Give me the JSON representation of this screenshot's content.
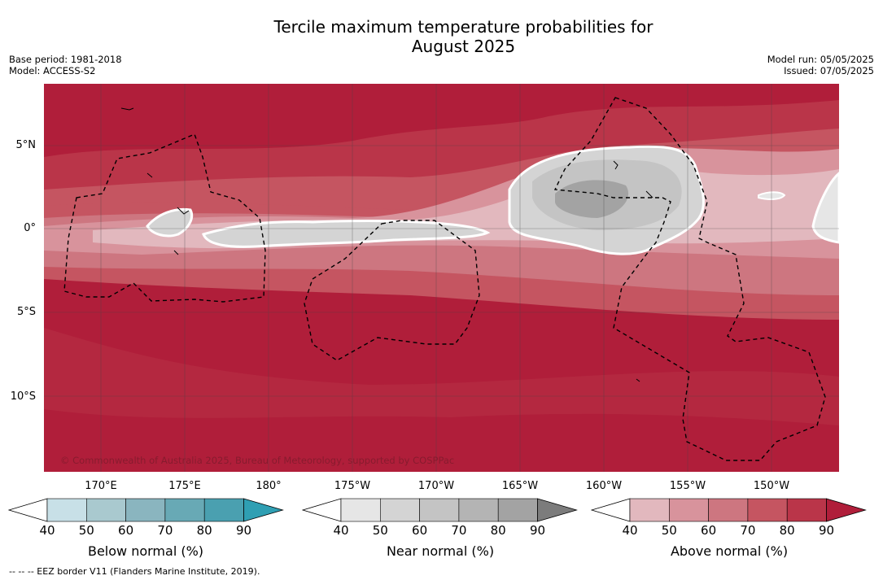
{
  "title_line1": "Tercile maximum temperature probabilities for",
  "title_line2": "August 2025",
  "base_period": "Base period: 1981-2018",
  "model": "Model: ACCESS-S2",
  "model_run": "Model run: 05/05/2025",
  "issued": "Issued: 07/05/2025",
  "lat_labels": [
    "5°N",
    "0°",
    "5°S",
    "10°S"
  ],
  "lon_labels": [
    "170°E",
    "175°E",
    "180°",
    "175°W",
    "170°W",
    "165°W",
    "160°W",
    "155°W",
    "150°W"
  ],
  "copyright": "© Commonwealth of Australia 2025, Bureau of Meteorology, supported by COSPPac",
  "colorbars": {
    "below": {
      "title": "Below normal (%)",
      "ticks": [
        "40",
        "50",
        "60",
        "70",
        "80",
        "90"
      ],
      "colors": [
        "#ffffff",
        "#c8e0e7",
        "#a9c9cf",
        "#8ab5bf",
        "#68a9b5",
        "#4aa0b0",
        "#2f9fb3"
      ]
    },
    "near": {
      "title": "Near normal (%)",
      "ticks": [
        "40",
        "50",
        "60",
        "70",
        "80",
        "90"
      ],
      "colors": [
        "#ffffff",
        "#e6e6e6",
        "#d4d4d4",
        "#c4c4c4",
        "#b4b4b4",
        "#a3a3a3",
        "#7c7c7c"
      ]
    },
    "above": {
      "title": "Above normal (%)",
      "ticks": [
        "40",
        "50",
        "60",
        "70",
        "80",
        "90"
      ],
      "colors": [
        "#ffffff",
        "#e2b8be",
        "#d8939c",
        "#cd7680",
        "#c55561",
        "#ba3549",
        "#b01e3a"
      ]
    }
  },
  "footer": "--  --  -- EEZ border V11 (Flanders Marine Institute, 2019)."
}
